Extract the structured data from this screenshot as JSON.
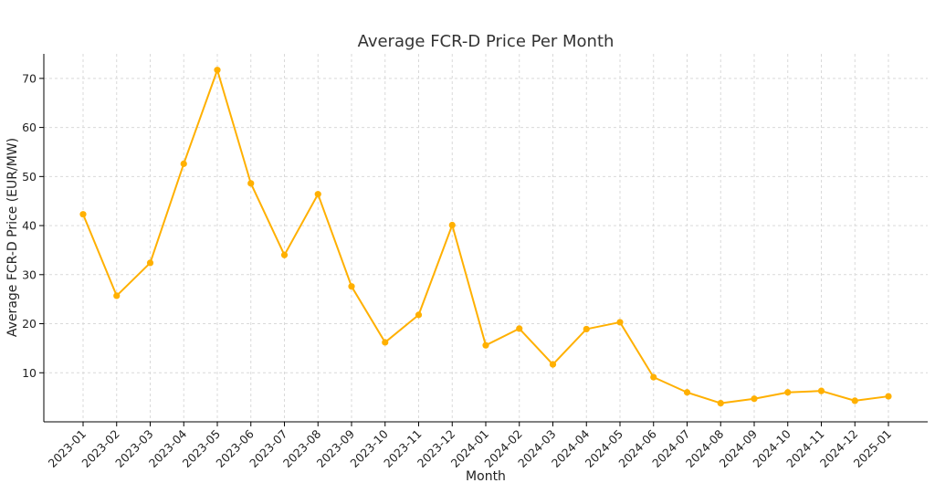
{
  "chart_data": {
    "type": "line",
    "title": "Average FCR-D Price Per Month",
    "xlabel": "Month",
    "ylabel": "Average FCR-D Price (EUR/MW)",
    "categories": [
      "2023-01",
      "2023-02",
      "2023-03",
      "2023-04",
      "2023-05",
      "2023-06",
      "2023-07",
      "2023-08",
      "2023-09",
      "2023-10",
      "2023-11",
      "2023-12",
      "2024-01",
      "2024-02",
      "2024-03",
      "2024-04",
      "2024-05",
      "2024-06",
      "2024-07",
      "2024-08",
      "2024-09",
      "2024-10",
      "2024-11",
      "2024-12",
      "2025-01"
    ],
    "series": [
      {
        "values": [
          42.3,
          25.7,
          32.4,
          52.6,
          71.7,
          48.6,
          34.0,
          46.4,
          27.6,
          16.2,
          21.8,
          40.1,
          15.6,
          19.0,
          11.7,
          18.9,
          20.3,
          9.1,
          6.0,
          3.8,
          4.7,
          6.0,
          6.3,
          4.3,
          5.2
        ],
        "color": "#FFB000"
      }
    ],
    "ylim": [
      0,
      75
    ],
    "yticks": [
      10,
      20,
      30,
      40,
      50,
      60,
      70
    ],
    "grid": true,
    "legend": "none"
  }
}
